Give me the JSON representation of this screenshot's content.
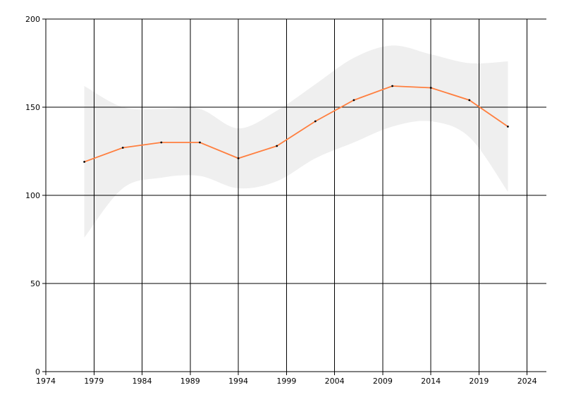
{
  "chart_data": {
    "type": "line",
    "title": "",
    "xlabel": "",
    "ylabel": "",
    "xlim": [
      1974,
      2026
    ],
    "ylim": [
      0,
      200
    ],
    "x_ticks": [
      1974,
      1979,
      1984,
      1989,
      1994,
      1999,
      2004,
      2009,
      2014,
      2019,
      2024
    ],
    "x_tick_labels": [
      "1974",
      "1979",
      "1984",
      "1989",
      "1994",
      "1999",
      "2004",
      "2009",
      "2014",
      "2019",
      "2024"
    ],
    "y_ticks": [
      0,
      50,
      100,
      150,
      200
    ],
    "y_tick_labels": [
      "0",
      "50",
      "100",
      "150",
      "200"
    ],
    "grid": true,
    "colors": {
      "line": "#ff7f3f",
      "band": "#efefef",
      "marker": "#000000",
      "grid": "#000000"
    },
    "series": [
      {
        "x": [
          1978,
          1982,
          1986,
          1990,
          1994,
          1998,
          2002,
          2006,
          2010,
          2014,
          2018,
          2022
        ],
        "values": [
          119,
          127,
          130,
          130,
          121,
          128,
          142,
          154,
          162,
          161,
          154,
          139
        ]
      }
    ],
    "band": {
      "x": [
        1978,
        1982,
        1986,
        1990,
        1994,
        1998,
        2002,
        2006,
        2010,
        2014,
        2018,
        2022
      ],
      "upper": [
        162,
        150,
        149,
        149,
        138,
        148,
        163,
        178,
        185,
        180,
        175,
        176
      ],
      "lower": [
        76,
        104,
        110,
        111,
        104,
        108,
        121,
        130,
        139,
        142,
        133,
        102
      ]
    }
  }
}
